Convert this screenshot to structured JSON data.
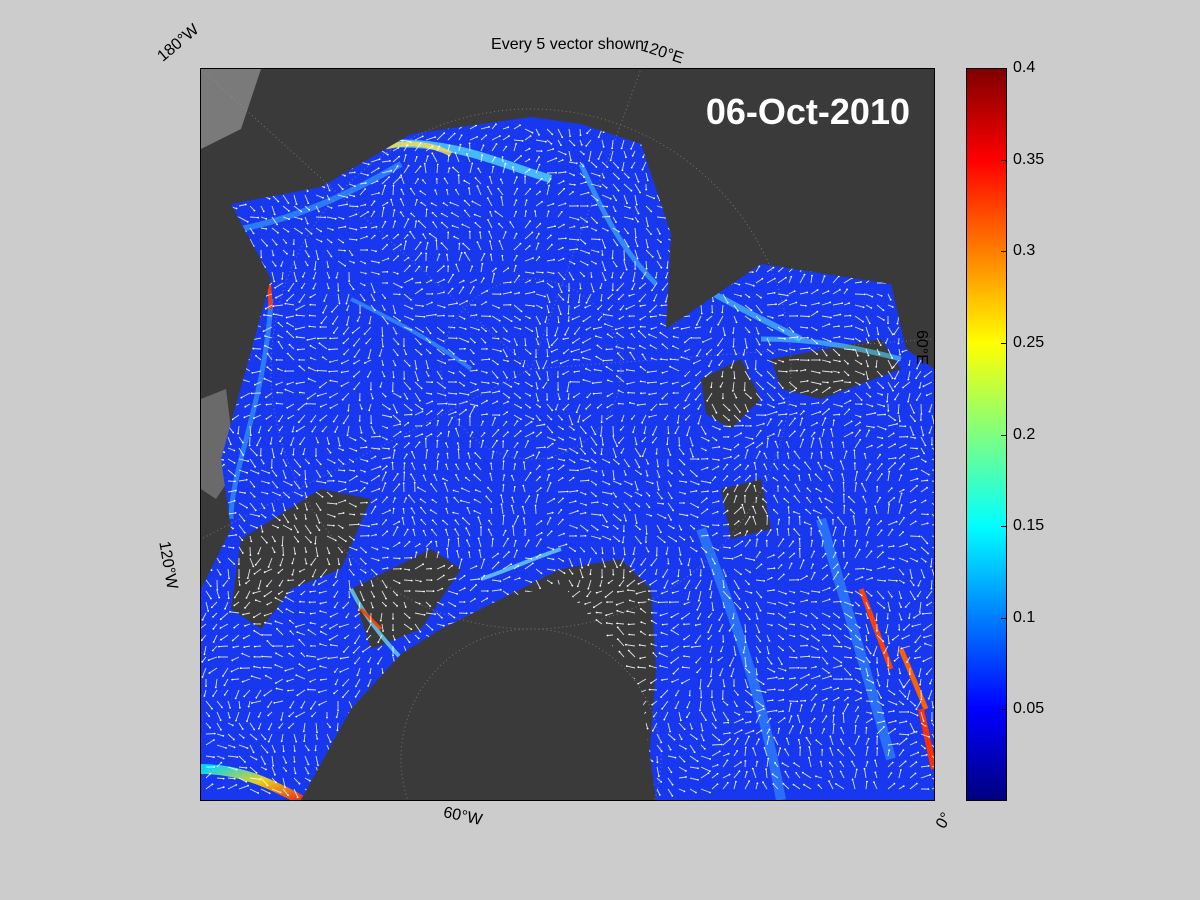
{
  "title": "Every 5 vector shown",
  "date": "06-Oct-2010",
  "grid_labels": {
    "lon_180w": "180°W",
    "lon_120e": "120°E",
    "lon_60e": "60°E",
    "lon_120w": "120°W",
    "lon_60w": "60°W",
    "lon_0": "0°",
    "lat_86n": "86°N"
  },
  "colorbar": {
    "ticks": [
      "0.4",
      "0.35",
      "0.3",
      "0.25",
      "0.2",
      "0.15",
      "0.1",
      "0.05"
    ],
    "range": [
      0,
      0.4
    ],
    "colormap": "jet"
  },
  "colors": {
    "background": "#cccccc",
    "land": "#3a3a3a",
    "ocean_ice": "#1a3cff",
    "vectors": "#ffffff"
  }
}
